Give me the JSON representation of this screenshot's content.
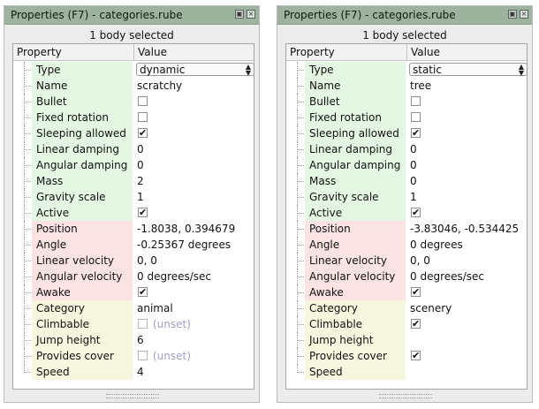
{
  "panels": [
    {
      "title": "Properties (F7) - categories.rube",
      "selection": "1 body selected",
      "header": {
        "property": "Property",
        "value": "Value"
      },
      "rows": [
        {
          "label": "Type",
          "kind": "combo",
          "value": "dynamic",
          "color": "g"
        },
        {
          "label": "Name",
          "kind": "text",
          "value": "scratchy",
          "color": "g"
        },
        {
          "label": "Bullet",
          "kind": "check",
          "checked": false,
          "color": "g"
        },
        {
          "label": "Fixed rotation",
          "kind": "check",
          "checked": false,
          "color": "g"
        },
        {
          "label": "Sleeping allowed",
          "kind": "check",
          "checked": true,
          "color": "g"
        },
        {
          "label": "Linear damping",
          "kind": "text",
          "value": "0",
          "color": "g"
        },
        {
          "label": "Angular damping",
          "kind": "text",
          "value": "0",
          "color": "g"
        },
        {
          "label": "Mass",
          "kind": "text",
          "value": "2",
          "color": "g"
        },
        {
          "label": "Gravity scale",
          "kind": "text",
          "value": "1",
          "color": "g"
        },
        {
          "label": "Active",
          "kind": "check",
          "checked": true,
          "color": "g"
        },
        {
          "label": "Position",
          "kind": "text",
          "value": "-1.8038, 0.394679",
          "color": "r"
        },
        {
          "label": "Angle",
          "kind": "text",
          "value": "-0.25367 degrees",
          "color": "r"
        },
        {
          "label": "Linear velocity",
          "kind": "text",
          "value": "0, 0",
          "color": "r"
        },
        {
          "label": "Angular velocity",
          "kind": "text",
          "value": "0 degrees/sec",
          "color": "r"
        },
        {
          "label": "Awake",
          "kind": "check",
          "checked": true,
          "color": "r"
        },
        {
          "label": "Category",
          "kind": "text",
          "value": "animal",
          "color": "y"
        },
        {
          "label": "Climbable",
          "kind": "check",
          "checked": false,
          "unset": "(unset)",
          "color": "y"
        },
        {
          "label": "Jump height",
          "kind": "text",
          "value": "6",
          "color": "y"
        },
        {
          "label": "Provides cover",
          "kind": "check",
          "checked": false,
          "unset": "(unset)",
          "color": "y"
        },
        {
          "label": "Speed",
          "kind": "text",
          "value": "4",
          "color": "y"
        }
      ]
    },
    {
      "title": "Properties (F7) - categories.rube",
      "selection": "1 body selected",
      "header": {
        "property": "Property",
        "value": "Value"
      },
      "rows": [
        {
          "label": "Type",
          "kind": "combo",
          "value": "static",
          "color": "g"
        },
        {
          "label": "Name",
          "kind": "text",
          "value": "tree",
          "color": "g"
        },
        {
          "label": "Bullet",
          "kind": "check",
          "checked": false,
          "color": "g"
        },
        {
          "label": "Fixed rotation",
          "kind": "check",
          "checked": false,
          "color": "g"
        },
        {
          "label": "Sleeping allowed",
          "kind": "check",
          "checked": true,
          "color": "g"
        },
        {
          "label": "Linear damping",
          "kind": "text",
          "value": "0",
          "color": "g"
        },
        {
          "label": "Angular damping",
          "kind": "text",
          "value": "0",
          "color": "g"
        },
        {
          "label": "Mass",
          "kind": "text",
          "value": "0",
          "color": "g"
        },
        {
          "label": "Gravity scale",
          "kind": "text",
          "value": "1",
          "color": "g"
        },
        {
          "label": "Active",
          "kind": "check",
          "checked": true,
          "color": "g"
        },
        {
          "label": "Position",
          "kind": "text",
          "value": "-3.83046, -0.534425",
          "color": "r"
        },
        {
          "label": "Angle",
          "kind": "text",
          "value": "0 degrees",
          "color": "r"
        },
        {
          "label": "Linear velocity",
          "kind": "text",
          "value": "0, 0",
          "color": "r"
        },
        {
          "label": "Angular velocity",
          "kind": "text",
          "value": "0 degrees/sec",
          "color": "r"
        },
        {
          "label": "Awake",
          "kind": "check",
          "checked": true,
          "color": "r"
        },
        {
          "label": "Category",
          "kind": "text",
          "value": "scenery",
          "color": "y"
        },
        {
          "label": "Climbable",
          "kind": "check",
          "checked": true,
          "color": "y"
        },
        {
          "label": "Jump height",
          "kind": "text",
          "value": "",
          "color": "y"
        },
        {
          "label": "Provides cover",
          "kind": "check",
          "checked": true,
          "color": "y"
        },
        {
          "label": "Speed",
          "kind": "text",
          "value": "",
          "color": "y"
        }
      ]
    }
  ],
  "colors": {
    "group_body": "#e3f7e3",
    "group_motion": "#fbe3e3",
    "group_custom": "#f7f7df",
    "titlebar": "#9eb39e"
  },
  "icons": {
    "float": "float-panel-icon",
    "close": "close-panel-icon",
    "combo_arrow": "updown-arrow-icon",
    "check": "checkmark-icon"
  }
}
